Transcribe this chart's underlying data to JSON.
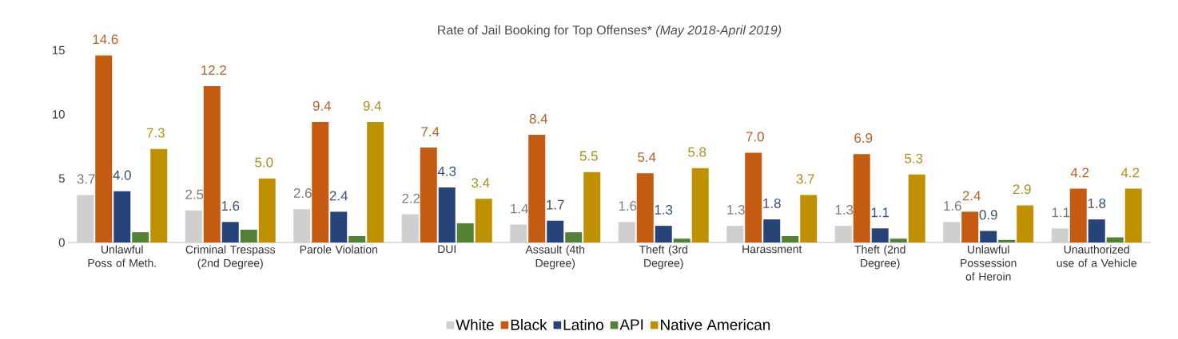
{
  "chart_data": {
    "type": "bar",
    "title": "Rate of Jail Booking for Top Offenses*  *(May 2018-April 2019)*",
    "categories": [
      "Unlawful Poss of Meth.",
      "Criminal Trespass (2nd Degree)",
      "Parole Violation",
      "DUI",
      "Assault (4th Degree)",
      "Theft (3rd Degree)",
      "Harassment",
      "Theft (2nd Degree)",
      "Unlawful Possession of Heroin",
      "Unauthorized use of a Vehicle"
    ],
    "series": [
      {
        "name": "White",
        "color": "#d0cece",
        "values": [
          3.7,
          2.5,
          2.6,
          2.2,
          1.4,
          1.6,
          1.3,
          1.3,
          1.6,
          1.1
        ],
        "value_labels": [
          "3.7",
          "2.5",
          "2.6",
          "2.2",
          "1.4",
          "1.6",
          "1.3",
          "1.3",
          "1.6",
          "1.1"
        ]
      },
      {
        "name": "Black",
        "color": "#c55a11",
        "values": [
          14.6,
          12.2,
          9.4,
          7.4,
          8.4,
          5.4,
          7.0,
          6.9,
          2.4,
          4.2
        ],
        "value_labels": [
          "14.6",
          "12.2",
          "9.4",
          "7.4",
          "8.4",
          "5.4",
          "7.0",
          "6.9",
          "2.4",
          "4.2"
        ]
      },
      {
        "name": "Latino",
        "color": "#264478",
        "values": [
          4.0,
          1.6,
          2.4,
          4.3,
          1.7,
          1.3,
          1.8,
          1.1,
          0.9,
          1.8
        ],
        "value_labels": [
          "4.0",
          "1.6",
          "2.4",
          "4.3",
          "1.7",
          "1.3",
          "1.8",
          "1.1",
          "0.9",
          "1.8"
        ]
      },
      {
        "name": "API",
        "color": "#548235",
        "values": [
          0.8,
          1.0,
          0.5,
          1.5,
          0.8,
          0.3,
          0.5,
          0.3,
          0.2,
          0.4
        ]
      },
      {
        "name": "Native American",
        "color": "#bf9000",
        "values": [
          7.3,
          5.0,
          9.4,
          3.4,
          5.5,
          5.8,
          3.7,
          5.3,
          2.9,
          4.2
        ],
        "value_labels": [
          "7.3",
          "5.0",
          "9.4",
          "3.4",
          "5.5",
          "5.8",
          "3.7",
          "5.3",
          "2.9",
          "4.2"
        ]
      }
    ],
    "ylim": [
      0,
      15
    ],
    "yticks": [
      0,
      5,
      10,
      15
    ],
    "grid": false,
    "legend": "bottom"
  }
}
